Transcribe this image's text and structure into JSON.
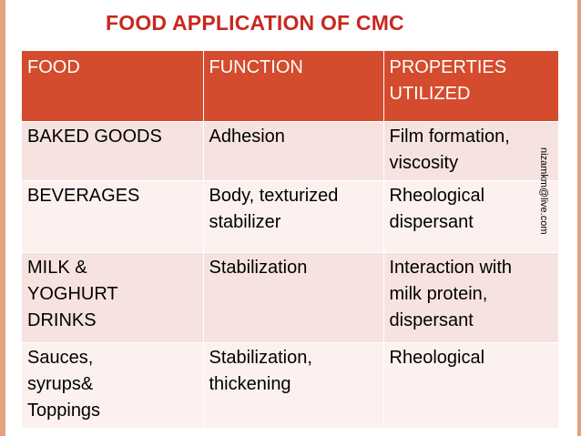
{
  "title": "FOOD APPLICATION OF CMC",
  "table": {
    "headers": [
      [
        "FOOD"
      ],
      [
        "FUNCTION"
      ],
      [
        "PROPERTIES",
        "UTILIZED"
      ]
    ],
    "rows": [
      [
        [
          "BAKED GOODS"
        ],
        [
          "Adhesion"
        ],
        [
          "Film formation,",
          "viscosity"
        ]
      ],
      [
        [
          "BEVERAGES"
        ],
        [
          "Body, texturized",
          "stabilizer"
        ],
        [
          "Rheological",
          "dispersant"
        ]
      ],
      [
        [
          "MILK &",
          "YOGHURT",
          "DRINKS"
        ],
        [
          "Stabilization"
        ],
        [
          "Interaction with",
          "milk protein,",
          "dispersant"
        ]
      ],
      [
        [
          "Sauces,",
          "syrups&",
          "Toppings"
        ],
        [
          "Stabilization,",
          "thickening"
        ],
        [
          "Rheological"
        ]
      ]
    ]
  },
  "watermark": "nizamkm@live.com",
  "colors": {
    "title": "#c8281e",
    "header_bg": "#d54b2d",
    "row_dark": "#f6e3df",
    "row_light": "#fcf1ef",
    "frame": "#e2a27c"
  }
}
